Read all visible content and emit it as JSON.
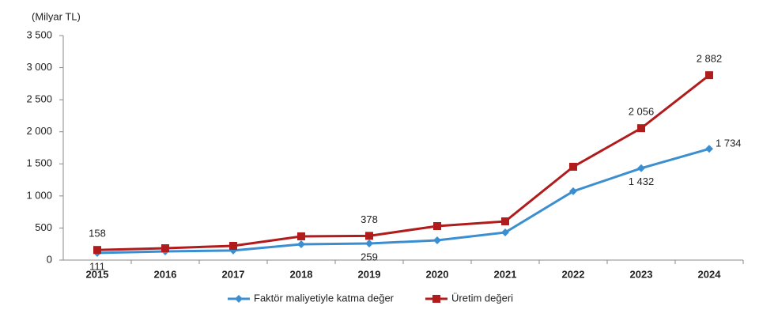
{
  "chart_data": {
    "type": "line",
    "y_axis_label": "(Milyar TL)",
    "categories": [
      "2015",
      "2016",
      "2017",
      "2018",
      "2019",
      "2020",
      "2021",
      "2022",
      "2023",
      "2024"
    ],
    "series": [
      {
        "name": "Faktör maliyetiyle katma değer",
        "color": "#3b8fd0",
        "marker": "diamond",
        "values": [
          111,
          135,
          150,
          247,
          259,
          308,
          431,
          1073,
          1432,
          1734
        ],
        "value_labels": [
          "111",
          null,
          null,
          null,
          "259",
          null,
          null,
          null,
          "1 432",
          "1 734"
        ]
      },
      {
        "name": "Üretim değeri",
        "color": "#b01c1c",
        "marker": "square",
        "values": [
          158,
          185,
          222,
          370,
          378,
          530,
          604,
          1455,
          2056,
          2882
        ],
        "value_labels": [
          "158",
          null,
          null,
          null,
          "378",
          null,
          null,
          null,
          "2 056",
          "2 882"
        ]
      }
    ],
    "ylim": [
      0,
      3500
    ],
    "yticks": [
      0,
      500,
      {
        "value": 1000,
        "label": "1 000"
      },
      {
        "value": 1500,
        "label": "1 500"
      },
      {
        "value": 2000,
        "label": "2 000"
      },
      {
        "value": 2500,
        "label": "2 500"
      },
      {
        "value": 3000,
        "label": "3 000"
      },
      {
        "value": 3500,
        "label": "3 500"
      }
    ],
    "grid": false,
    "legend": "bottom"
  }
}
